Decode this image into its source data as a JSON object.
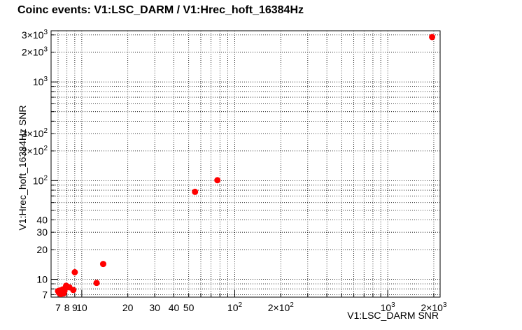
{
  "chart_data": {
    "type": "scatter",
    "title": "Coinc events: V1:LSC_DARM / V1:Hrec_hoft_16384Hz",
    "xlabel": "V1:LSC_DARM SNR",
    "ylabel": "V1:Hrec_hoft_16384Hz SNR",
    "xscale": "log",
    "yscale": "log",
    "xlim": [
      6.3,
      2200
    ],
    "ylim": [
      6.6,
      3300
    ],
    "grid": true,
    "marker_color": "#ff0000",
    "x_ticks": [
      {
        "value": 7,
        "label": "7"
      },
      {
        "value": 8,
        "label": "8"
      },
      {
        "value": 9,
        "label": "9"
      },
      {
        "value": 10,
        "label": "10"
      },
      {
        "value": 20,
        "label": "20"
      },
      {
        "value": 30,
        "label": "30"
      },
      {
        "value": 40,
        "label": "40"
      },
      {
        "value": 50,
        "label": "50"
      },
      {
        "value": 100,
        "label": "10",
        "exp": "2"
      },
      {
        "value": 200,
        "label": "2×10",
        "exp": "2"
      },
      {
        "value": 1000,
        "label": "10",
        "exp": "3"
      },
      {
        "value": 2000,
        "label": "2×10",
        "exp": "3"
      }
    ],
    "y_ticks": [
      {
        "value": 7,
        "label": "7"
      },
      {
        "value": 10,
        "label": "10"
      },
      {
        "value": 20,
        "label": "20"
      },
      {
        "value": 30,
        "label": "30"
      },
      {
        "value": 40,
        "label": "40"
      },
      {
        "value": 100,
        "label": "10",
        "exp": "2"
      },
      {
        "value": 200,
        "label": "2×10",
        "exp": "2"
      },
      {
        "value": 300,
        "label": "3×10",
        "exp": "2"
      },
      {
        "value": 1000,
        "label": "10",
        "exp": "3"
      },
      {
        "value": 2000,
        "label": "2×10",
        "exp": "3"
      },
      {
        "value": 3000,
        "label": "3×10",
        "exp": "3"
      }
    ],
    "points": [
      {
        "x": 7.0,
        "y": 7.6
      },
      {
        "x": 7.1,
        "y": 7.3
      },
      {
        "x": 7.2,
        "y": 7.7
      },
      {
        "x": 7.3,
        "y": 7.1
      },
      {
        "x": 7.4,
        "y": 7.5
      },
      {
        "x": 7.5,
        "y": 7.9
      },
      {
        "x": 7.6,
        "y": 7.2
      },
      {
        "x": 7.7,
        "y": 7.6
      },
      {
        "x": 7.8,
        "y": 8.1
      },
      {
        "x": 7.9,
        "y": 8.6
      },
      {
        "x": 8.1,
        "y": 8.4
      },
      {
        "x": 8.3,
        "y": 8.3
      },
      {
        "x": 8.8,
        "y": 7.8
      },
      {
        "x": 9.0,
        "y": 11.8
      },
      {
        "x": 12.5,
        "y": 9.2
      },
      {
        "x": 13.8,
        "y": 14.3
      },
      {
        "x": 55,
        "y": 77
      },
      {
        "x": 77,
        "y": 101
      },
      {
        "x": 1950,
        "y": 2850
      }
    ]
  }
}
